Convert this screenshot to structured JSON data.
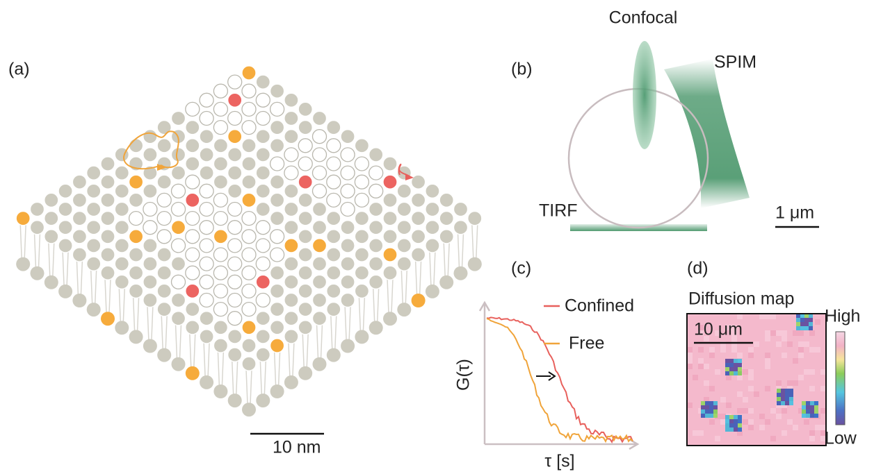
{
  "panels": {
    "a": {
      "label": "(a)",
      "scale_bar": "10 nm"
    },
    "b": {
      "label": "(b)",
      "confocal": "Confocal",
      "spim": "SPIM",
      "tirf": "TIRF",
      "scale_bar": "1 μm"
    },
    "c": {
      "label": "(c)",
      "legend": [
        "Confined",
        "Free"
      ],
      "y_label": "G(τ)",
      "x_label": "τ [s]"
    },
    "d": {
      "label": "(d)",
      "title": "Diffusion map",
      "scale_bar": "10 μm",
      "colorbar_high": "High",
      "colorbar_low": "Low"
    }
  }
}
